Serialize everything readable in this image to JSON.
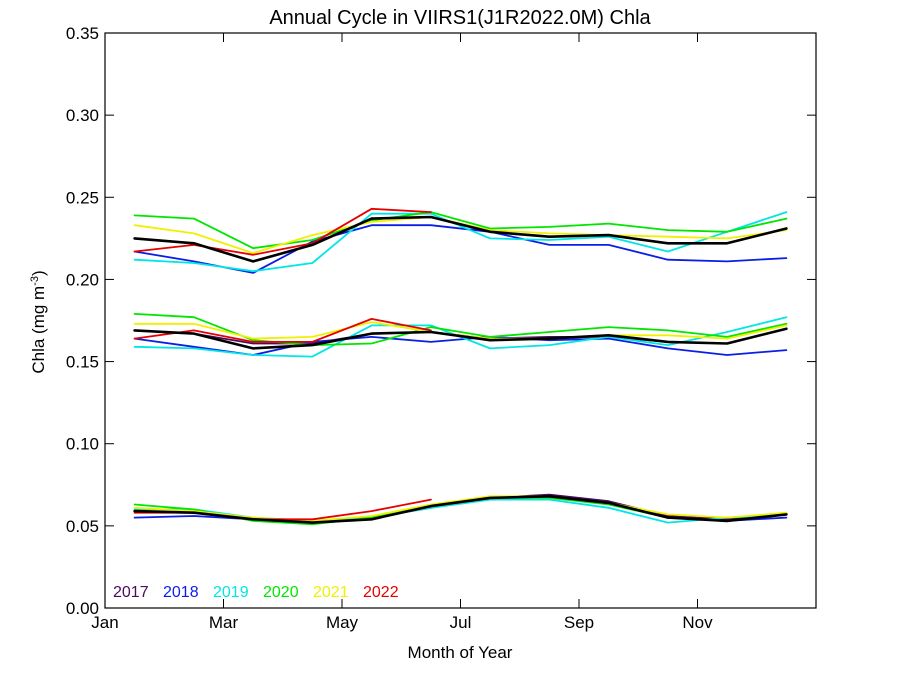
{
  "chart_data": {
    "type": "line",
    "title": "Annual Cycle in VIIRS1(J1R2022.0M) Chla",
    "xlabel": "Month of Year",
    "ylabel_main": "Chla (mg m",
    "ylabel_sup": "-3",
    "ylabel_close": ")",
    "xlim": [
      1,
      13
    ],
    "ylim": [
      0,
      0.35
    ],
    "x_ticks": [
      {
        "value": 1,
        "label": "Jan"
      },
      {
        "value": 3,
        "label": "Mar"
      },
      {
        "value": 5,
        "label": "May"
      },
      {
        "value": 7,
        "label": "Jul"
      },
      {
        "value": 9,
        "label": "Sep"
      },
      {
        "value": 11,
        "label": "Nov"
      }
    ],
    "y_ticks": [
      {
        "value": 0.0,
        "label": "0.00"
      },
      {
        "value": 0.05,
        "label": "0.05"
      },
      {
        "value": 0.1,
        "label": "0.10"
      },
      {
        "value": 0.15,
        "label": "0.15"
      },
      {
        "value": 0.2,
        "label": "0.20"
      },
      {
        "value": 0.25,
        "label": "0.25"
      },
      {
        "value": 0.3,
        "label": "0.30"
      },
      {
        "value": 0.35,
        "label": "0.35"
      }
    ],
    "months": [
      1.5,
      2.5,
      3.5,
      4.5,
      5.5,
      6.5,
      7.5,
      8.5,
      9.5,
      10.5,
      11.5,
      12.5
    ],
    "legend": [
      {
        "label": "2017",
        "color": "#4b0a5c"
      },
      {
        "label": "2018",
        "color": "#0a1ee6"
      },
      {
        "label": "2019",
        "color": "#00e6e6"
      },
      {
        "label": "2020",
        "color": "#00e600"
      },
      {
        "label": "2021",
        "color": "#f0f000"
      },
      {
        "label": "2022",
        "color": "#e60000"
      }
    ],
    "series": [
      {
        "year": "2017",
        "color": "#4b0a5c",
        "group": "upper",
        "values": [
          0.225,
          0.222,
          0.211,
          0.221,
          0.237,
          0.238,
          0.229,
          0.226,
          0.227,
          0.222,
          0.222,
          0.231
        ]
      },
      {
        "year": "2018",
        "color": "#0a1ee6",
        "group": "upper",
        "values": [
          0.217,
          0.211,
          0.204,
          0.223,
          0.233,
          0.233,
          0.229,
          0.221,
          0.221,
          0.212,
          0.211,
          0.213
        ]
      },
      {
        "year": "2019",
        "color": "#00e6e6",
        "group": "upper",
        "values": [
          0.212,
          0.21,
          0.205,
          0.21,
          0.24,
          0.24,
          0.225,
          0.224,
          0.226,
          0.217,
          0.229,
          0.241
        ]
      },
      {
        "year": "2020",
        "color": "#00e600",
        "group": "upper",
        "values": [
          0.239,
          0.237,
          0.219,
          0.224,
          0.236,
          0.241,
          0.231,
          0.232,
          0.234,
          0.23,
          0.229,
          0.237
        ]
      },
      {
        "year": "2021",
        "color": "#f0f000",
        "group": "upper",
        "values": [
          0.233,
          0.228,
          0.216,
          0.227,
          0.235,
          0.238,
          0.23,
          0.228,
          0.227,
          0.226,
          0.225,
          0.23
        ]
      },
      {
        "year": "2022",
        "color": "#e60000",
        "group": "upper",
        "values": [
          0.217,
          0.221,
          0.215,
          0.222,
          0.243,
          0.241,
          null,
          null,
          null,
          null,
          null,
          null
        ]
      },
      {
        "year": "2017",
        "color": "#4b0a5c",
        "group": "middle",
        "values": [
          0.169,
          0.167,
          0.161,
          0.161,
          0.167,
          0.168,
          0.164,
          0.165,
          0.165,
          0.162,
          0.161,
          0.17
        ]
      },
      {
        "year": "2018",
        "color": "#0a1ee6",
        "group": "middle",
        "values": [
          0.164,
          0.159,
          0.154,
          0.162,
          0.165,
          0.162,
          0.165,
          0.163,
          0.164,
          0.158,
          0.154,
          0.157
        ]
      },
      {
        "year": "2019",
        "color": "#00e6e6",
        "group": "middle",
        "values": [
          0.159,
          0.158,
          0.154,
          0.153,
          0.172,
          0.172,
          0.158,
          0.16,
          0.165,
          0.16,
          0.168,
          0.177
        ]
      },
      {
        "year": "2020",
        "color": "#00e600",
        "group": "middle",
        "values": [
          0.179,
          0.177,
          0.163,
          0.16,
          0.161,
          0.171,
          0.165,
          0.168,
          0.171,
          0.169,
          0.165,
          0.173
        ]
      },
      {
        "year": "2021",
        "color": "#f0f000",
        "group": "middle",
        "values": [
          0.173,
          0.173,
          0.164,
          0.165,
          0.174,
          0.168,
          0.164,
          0.164,
          0.166,
          0.166,
          0.164,
          0.172
        ]
      },
      {
        "year": "2022",
        "color": "#e60000",
        "group": "middle",
        "values": [
          0.164,
          0.169,
          0.162,
          0.162,
          0.176,
          0.169,
          null,
          null,
          null,
          null,
          null,
          null
        ]
      },
      {
        "year": "2017",
        "color": "#4b0a5c",
        "group": "lower",
        "values": [
          0.059,
          0.058,
          0.054,
          0.052,
          0.055,
          0.062,
          0.067,
          0.069,
          0.065,
          0.056,
          0.054,
          0.057
        ]
      },
      {
        "year": "2018",
        "color": "#0a1ee6",
        "group": "lower",
        "values": [
          0.055,
          0.056,
          0.054,
          0.053,
          0.055,
          0.061,
          0.067,
          0.068,
          0.064,
          0.055,
          0.053,
          0.055
        ]
      },
      {
        "year": "2019",
        "color": "#00e6e6",
        "group": "lower",
        "values": [
          0.06,
          0.06,
          0.055,
          0.053,
          0.055,
          0.061,
          0.066,
          0.066,
          0.061,
          0.052,
          0.055,
          0.057
        ]
      },
      {
        "year": "2020",
        "color": "#00e600",
        "group": "lower",
        "values": [
          0.063,
          0.06,
          0.053,
          0.051,
          0.055,
          0.062,
          0.067,
          0.067,
          0.063,
          0.055,
          0.053,
          0.057
        ]
      },
      {
        "year": "2021",
        "color": "#f0f000",
        "group": "lower",
        "values": [
          0.061,
          0.059,
          0.055,
          0.053,
          0.056,
          0.063,
          0.068,
          0.068,
          0.064,
          0.057,
          0.055,
          0.058
        ]
      },
      {
        "year": "2022",
        "color": "#e60000",
        "group": "lower",
        "values": [
          0.058,
          0.058,
          0.054,
          0.054,
          0.059,
          0.066,
          null,
          null,
          null,
          null,
          null,
          null
        ]
      },
      {
        "year": "mean",
        "color": "#000000",
        "group": "upper",
        "values": [
          0.225,
          0.222,
          0.211,
          0.221,
          0.237,
          0.238,
          0.229,
          0.226,
          0.227,
          0.222,
          0.222,
          0.231
        ]
      },
      {
        "year": "mean",
        "color": "#000000",
        "group": "middle",
        "values": [
          0.169,
          0.167,
          0.158,
          0.16,
          0.167,
          0.168,
          0.163,
          0.164,
          0.166,
          0.162,
          0.161,
          0.17
        ]
      },
      {
        "year": "mean",
        "color": "#000000",
        "group": "lower",
        "values": [
          0.059,
          0.058,
          0.054,
          0.052,
          0.054,
          0.062,
          0.067,
          0.068,
          0.064,
          0.055,
          0.053,
          0.057
        ]
      }
    ]
  }
}
